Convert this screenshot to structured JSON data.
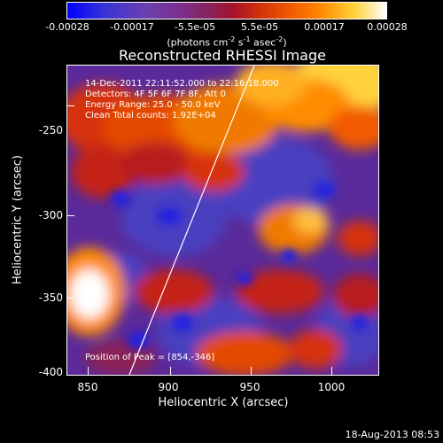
{
  "colorbar": {
    "tick_labels": [
      "-0.00028",
      "-0.00017",
      "-5.5e-05",
      "5.5e-05",
      "0.00017",
      "0.00028"
    ],
    "unit_prefix": "(photons cm",
    "unit_exp1": "-2",
    "unit_mid": " s",
    "unit_exp2": "-1",
    "unit_mid2": " asec",
    "unit_exp3": "-2",
    "unit_suffix": ")",
    "range": [
      -0.00028,
      0.00028
    ]
  },
  "title": "Reconstructed RHESSI Image",
  "info": {
    "time": "14-Dec-2011 22:11:52.000 to 22:16:18.000",
    "detectors": "Detectors: 4F 5F 6F 7F 8F, Att 0",
    "energy": "Energy Range: 25.0 - 50.0 keV",
    "clean": "Clean    Total counts: 1.92E+04",
    "peak": "Position of Peak = [854,-346]"
  },
  "axes": {
    "xlabel": "Heliocentric X (arcsec)",
    "ylabel": "Heliocentric Y (arcsec)",
    "xticks": [
      "850",
      "900",
      "950",
      "1000"
    ],
    "xtick_values": [
      850,
      900,
      950,
      1000
    ],
    "yticks": [
      "-250",
      "-300",
      "-350",
      "-400"
    ],
    "ytick_values": [
      -250,
      -300,
      -350,
      -400
    ],
    "xlim": [
      837,
      1028
    ],
    "ylim": [
      -403,
      -214
    ]
  },
  "timestamp": "18-Aug-2013 08:53"
}
